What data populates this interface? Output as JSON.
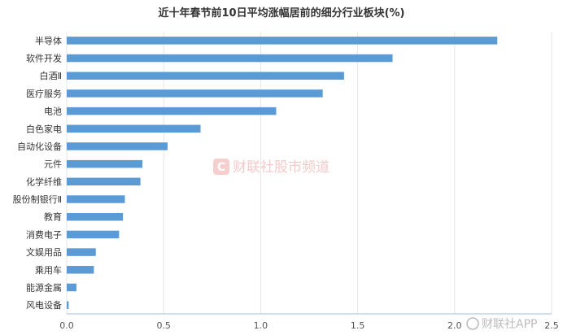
{
  "chart_data": {
    "type": "bar",
    "orientation": "horizontal",
    "title": "近十年春节前10日平均涨幅居前的细分行业板块(%)",
    "categories": [
      "半导体",
      "软件开发",
      "白酒Ⅱ",
      "医疗服务",
      "电池",
      "白色家电",
      "自动化设备",
      "元件",
      "化学纤维",
      "股份制银行Ⅱ",
      "教育",
      "消费电子",
      "文娱用品",
      "乘用车",
      "能源金属",
      "风电设备"
    ],
    "values": [
      2.22,
      1.68,
      1.43,
      1.32,
      1.08,
      0.69,
      0.52,
      0.39,
      0.38,
      0.3,
      0.29,
      0.27,
      0.15,
      0.14,
      0.05,
      0.01
    ],
    "xlim": [
      0,
      2.5
    ],
    "xticks": [
      "0.0",
      "0.5",
      "1.0",
      "1.5",
      "2.0",
      "2.5"
    ],
    "xlabel": "",
    "ylabel": "",
    "grid": "vertical",
    "bar_color": "#5b9bd5"
  },
  "watermark": {
    "logo_letter": "C",
    "text": "财联社股市频道",
    "corner_text": "财联社APP"
  }
}
